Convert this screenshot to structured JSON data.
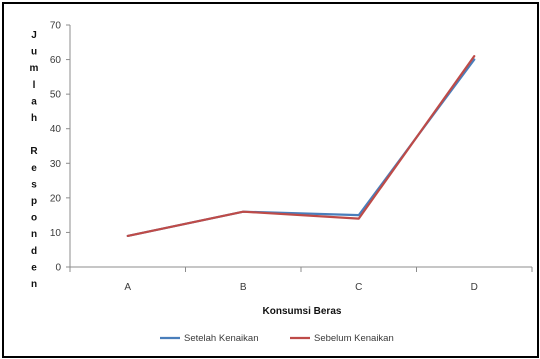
{
  "chart_data": {
    "type": "line",
    "categories": [
      "A",
      "B",
      "C",
      "D"
    ],
    "series": [
      {
        "name": "Setelah Kenaikan",
        "values": [
          9,
          16,
          15,
          60
        ],
        "color": "#4a7ebb"
      },
      {
        "name": "Sebelum Kenaikan",
        "values": [
          9,
          16,
          14,
          61
        ],
        "color": "#be4b48"
      }
    ],
    "xlabel": "Konsumsi Beras",
    "ylabel_letters": [
      "J",
      "u",
      "m",
      "l",
      "a",
      "h",
      "",
      "R",
      "e",
      "s",
      "p",
      "o",
      "n",
      "d",
      "e",
      "n"
    ],
    "ylim": [
      0,
      70
    ],
    "yticks": [
      0,
      10,
      20,
      30,
      40,
      50,
      60,
      70
    ],
    "grid": false,
    "legend_position": "bottom"
  }
}
